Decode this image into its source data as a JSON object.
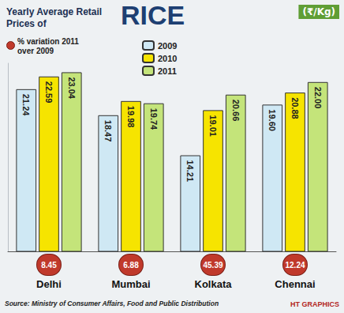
{
  "chart_data": {
    "type": "bar",
    "title": "Yearly Average Retail Prices of RICE",
    "ylabel": "(₹/Kg)",
    "categories": [
      "Delhi",
      "Mumbai",
      "Kolkata",
      "Chennai"
    ],
    "series": [
      {
        "name": "2009",
        "color": "#cfe8f4",
        "values": [
          21.24,
          18.47,
          14.21,
          19.6
        ],
        "value_labels": [
          "21.24",
          "18.47",
          "14.21",
          "19.60"
        ]
      },
      {
        "name": "2010",
        "color": "#f6e400",
        "values": [
          22.59,
          19.98,
          19.01,
          20.88
        ],
        "value_labels": [
          "22.59",
          "19.98",
          "19.01",
          "20.88"
        ]
      },
      {
        "name": "2011",
        "color": "#c4e47a",
        "values": [
          23.04,
          19.74,
          20.66,
          22.0
        ],
        "value_labels": [
          "23.04",
          "19.74",
          "20.66",
          "22.00"
        ]
      }
    ],
    "annotations": {
      "variation_title": "% variation 2011 over 2009",
      "variation": [
        8.45,
        6.88,
        45.39,
        12.24
      ],
      "source": "Source: Ministry of Consumer Affairs, Food and Public Distribution",
      "credit": "HT GRAPHICS"
    },
    "ylim": [
      4,
      24
    ],
    "yticks": [],
    "grid": false,
    "legend": "top",
    "data_labels": true,
    "tick_labels": "x"
  }
}
